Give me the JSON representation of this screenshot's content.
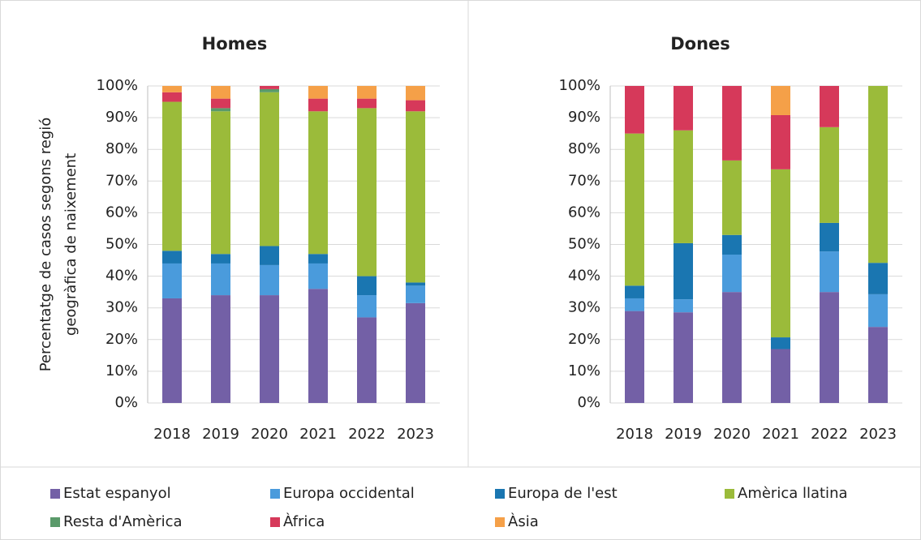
{
  "chart_data": [
    {
      "type": "stacked-bar",
      "title": "Homes",
      "ylabel": [
        "Percentatge de casos  segons regió",
        "geogràfica de naixement"
      ],
      "categories": [
        "2018",
        "2019",
        "2020",
        "2021",
        "2022",
        "2023"
      ],
      "ylim": [
        0,
        100
      ],
      "yticks": [
        {
          "value": 0,
          "label": "0%"
        },
        {
          "value": 10,
          "label": "10%"
        },
        {
          "value": 20,
          "label": "20%"
        },
        {
          "value": 30,
          "label": "30%"
        },
        {
          "value": 40,
          "label": "40%"
        },
        {
          "value": 50,
          "label": "50%"
        },
        {
          "value": 60,
          "label": "60%"
        },
        {
          "value": 70,
          "label": "70%"
        },
        {
          "value": 80,
          "label": "80%"
        },
        {
          "value": 90,
          "label": "90%"
        },
        {
          "value": 100,
          "label": "100%"
        }
      ],
      "grid": true,
      "series": [
        {
          "name": "Estat espanyol",
          "color": "#7360a6",
          "values": [
            33,
            34,
            34,
            36,
            27,
            31.5
          ]
        },
        {
          "name": "Europa occidental",
          "color": "#4a9bdc",
          "values": [
            11,
            10,
            9.5,
            8,
            7,
            5.5
          ]
        },
        {
          "name": "Europa de l'est",
          "color": "#1a76b1",
          "values": [
            4,
            3,
            6,
            3,
            6,
            1
          ]
        },
        {
          "name": "Amèrica llatina",
          "color": "#9bbb3a",
          "values": [
            47,
            45,
            48.5,
            45,
            53,
            54
          ]
        },
        {
          "name": "Resta d'Amèrica",
          "color": "#5a9a6a",
          "values": [
            0,
            1,
            1,
            0,
            0,
            0
          ]
        },
        {
          "name": "Àfrica",
          "color": "#d6395a",
          "values": [
            3,
            3,
            1,
            4,
            3,
            3.5
          ]
        },
        {
          "name": "Àsia",
          "color": "#f5a048",
          "values": [
            2,
            4,
            0,
            4,
            4,
            4.5
          ]
        }
      ]
    },
    {
      "type": "stacked-bar",
      "title": "Dones",
      "categories": [
        "2018",
        "2019",
        "2020",
        "2021",
        "2022",
        "2023"
      ],
      "ylim": [
        0,
        100
      ],
      "yticks": [
        {
          "value": 0,
          "label": "0%"
        },
        {
          "value": 10,
          "label": "10%"
        },
        {
          "value": 20,
          "label": "20%"
        },
        {
          "value": 30,
          "label": "30%"
        },
        {
          "value": 40,
          "label": "40%"
        },
        {
          "value": 50,
          "label": "50%"
        },
        {
          "value": 60,
          "label": "60%"
        },
        {
          "value": 70,
          "label": "70%"
        },
        {
          "value": 80,
          "label": "80%"
        },
        {
          "value": 90,
          "label": "90%"
        },
        {
          "value": 100,
          "label": "100%"
        }
      ],
      "grid": true,
      "series": [
        {
          "name": "Estat espanyol",
          "color": "#7360a6",
          "values": [
            29,
            28.6,
            35,
            17,
            35,
            24
          ]
        },
        {
          "name": "Europa occidental",
          "color": "#4a9bdc",
          "values": [
            4,
            4.1,
            11.8,
            0,
            12.8,
            10.3
          ]
        },
        {
          "name": "Europa de l'est",
          "color": "#1a76b1",
          "values": [
            4,
            17.7,
            6.2,
            3.7,
            9,
            9.9
          ]
        },
        {
          "name": "Amèrica llatina",
          "color": "#9bbb3a",
          "values": [
            48,
            35.6,
            23.5,
            53,
            30.2,
            55.8
          ]
        },
        {
          "name": "Resta d'Amèrica",
          "color": "#5a9a6a",
          "values": [
            0,
            0,
            0,
            0,
            0,
            0
          ]
        },
        {
          "name": "Àfrica",
          "color": "#d6395a",
          "values": [
            15,
            14,
            23.5,
            17.1,
            13,
            0
          ]
        },
        {
          "name": "Àsia",
          "color": "#f5a048",
          "values": [
            0,
            0,
            0,
            9.2,
            0,
            0
          ]
        }
      ]
    }
  ]
}
